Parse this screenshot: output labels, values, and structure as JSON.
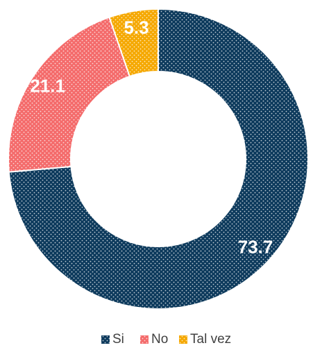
{
  "chart_data": {
    "type": "donut",
    "categories": [
      "Si",
      "No",
      "Tal vez"
    ],
    "values": [
      73.7,
      21.1,
      5.3
    ],
    "colors": [
      "#0d3a5c",
      "#f46b6b",
      "#f5a800"
    ],
    "legend": "bottom"
  }
}
